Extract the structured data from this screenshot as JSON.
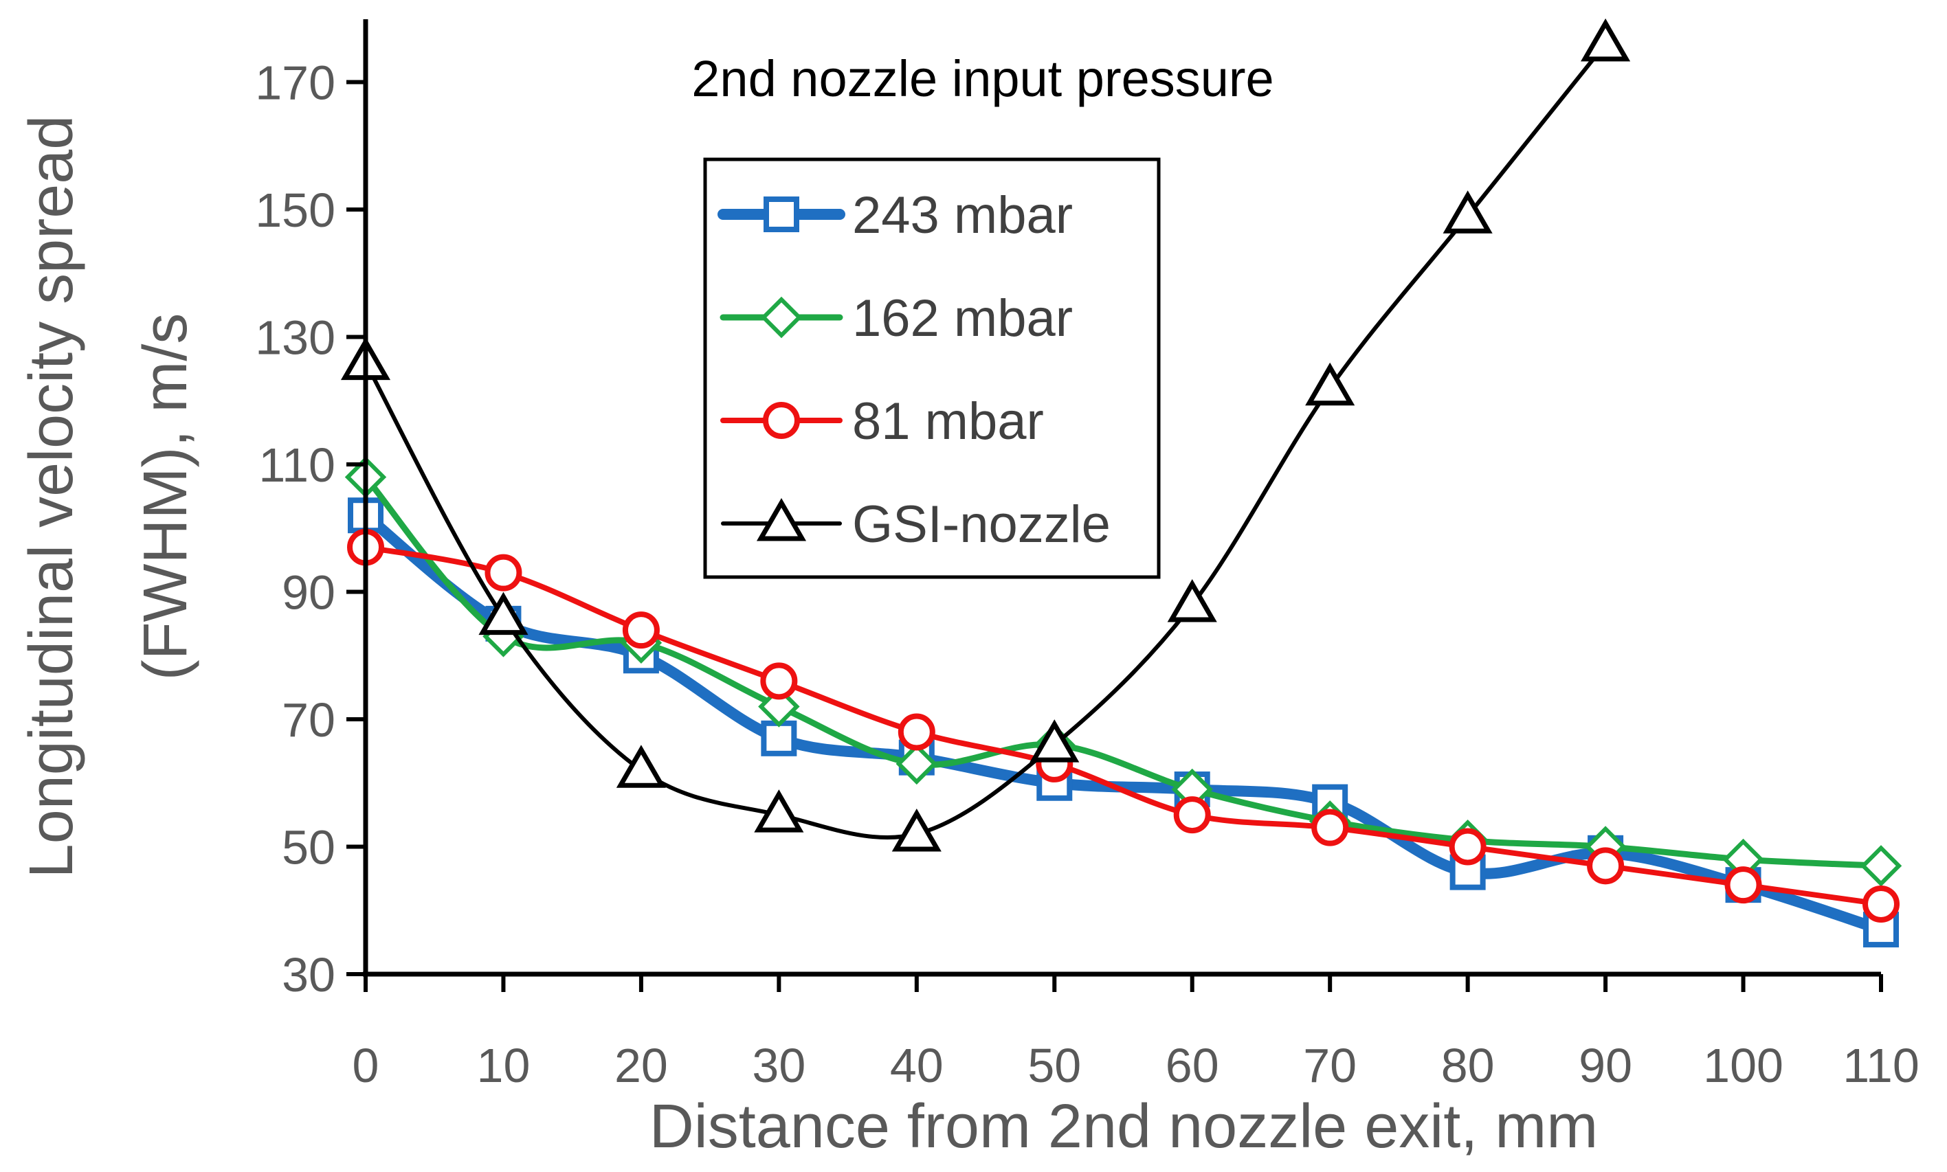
{
  "chart_data": {
    "type": "line",
    "title": "",
    "annotation": "2nd nozzle input pressure",
    "xlabel": "Distance from 2nd nozzle exit, mm",
    "ylabel_line1": "Longitudinal velocity spread",
    "ylabel_line2": "(FWHM), m/s",
    "xlim": [
      0,
      110
    ],
    "ylim": [
      30,
      180
    ],
    "x_ticks": [
      0,
      10,
      20,
      30,
      40,
      50,
      60,
      70,
      80,
      90,
      100,
      110
    ],
    "y_ticks": [
      30,
      50,
      70,
      90,
      110,
      130,
      150,
      170
    ],
    "grid": false,
    "legend_position": "top-center",
    "series": [
      {
        "name": "243 mbar",
        "color": "#1f6fc2",
        "marker": "square",
        "x": [
          0,
          10,
          20,
          30,
          40,
          50,
          60,
          70,
          80,
          90,
          100,
          110
        ],
        "values": [
          102,
          85,
          80,
          67,
          64,
          60,
          59,
          57,
          46,
          49,
          44,
          37
        ]
      },
      {
        "name": "162 mbar",
        "color": "#1fa845",
        "marker": "diamond",
        "x": [
          0,
          10,
          20,
          30,
          40,
          50,
          60,
          70,
          80,
          90,
          100,
          110
        ],
        "values": [
          108,
          83,
          82,
          72,
          63,
          66,
          59,
          54,
          51,
          50,
          48,
          47
        ]
      },
      {
        "name": "81 mbar",
        "color": "#ee1111",
        "marker": "circle",
        "x": [
          0,
          10,
          20,
          30,
          40,
          50,
          60,
          70,
          80,
          90,
          100,
          110
        ],
        "values": [
          97,
          93,
          84,
          76,
          68,
          63,
          55,
          53,
          50,
          47,
          44,
          41
        ]
      },
      {
        "name": "GSI-nozzle",
        "color": "#000000",
        "marker": "triangle",
        "x": [
          0,
          10,
          20,
          30,
          40,
          50,
          60,
          70,
          80,
          90
        ],
        "values": [
          126,
          86,
          62,
          55,
          52,
          66,
          88,
          122,
          149,
          176
        ]
      }
    ]
  }
}
